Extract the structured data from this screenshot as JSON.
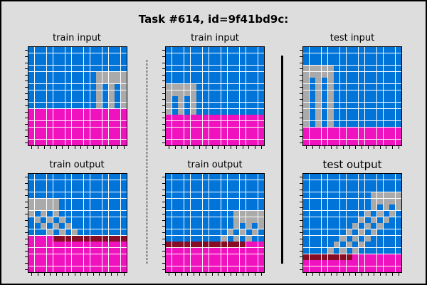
{
  "title": "Task #614, id=9f41bd9c:",
  "palette": {
    "0": "#0074d9",
    "5": "#aaaaaa",
    "6": "#f012be",
    "9": "#870c25"
  },
  "panels": [
    {
      "id": "p0",
      "label": "train input",
      "grid": [
        "0000000000000000",
        "0000000000000000",
        "0000000000000000",
        "0000000000000000",
        "0000000000055555",
        "0000000000055555",
        "0000000000050505",
        "0000000000050505",
        "0000000000050505",
        "0000000000050505",
        "6666666666666666",
        "6666666666666666",
        "6666666666666666",
        "6666666666666666",
        "6666666666666666",
        "6666666666666666"
      ]
    },
    {
      "id": "p1",
      "label": "train input",
      "grid": [
        "0000000000000000",
        "0000000000000000",
        "0000000000000000",
        "0000000000000000",
        "0000000000000000",
        "0000000000000000",
        "5555500000000000",
        "5555500000000000",
        "5050500000000000",
        "5050500000000000",
        "5050500000000000",
        "6666666666666666",
        "6666666666666666",
        "6666666666666666",
        "6666666666666666",
        "6666666666666666"
      ]
    },
    {
      "id": "p2",
      "label": "test input",
      "grid": [
        "0000000000000000",
        "0000000000000000",
        "0000000000000000",
        "5555500000000000",
        "5555500000000000",
        "5050500000000000",
        "5050500000000000",
        "5050500000000000",
        "5050500000000000",
        "5050500000000000",
        "5050500000000000",
        "5050500000000000",
        "5050500000000000",
        "6666666666666666",
        "6666666666666666",
        "6666666666666666"
      ]
    },
    {
      "id": "p3",
      "label": "train output",
      "grid": [
        "0000000000000000",
        "0000000000000000",
        "0000000000000000",
        "0000000000000000",
        "5555500000000000",
        "5555500000000000",
        "5050500000000000",
        "0505050000000000",
        "0050505000000000",
        "0005050500000000",
        "6666999999999999",
        "6666666666666666",
        "6666666666666666",
        "6666666666666666",
        "6666666666666666",
        "6666666666666666"
      ]
    },
    {
      "id": "p4",
      "label": "train output",
      "grid": [
        "0000000000000000",
        "0000000000000000",
        "0000000000000000",
        "0000000000000000",
        "0000000000000000",
        "0000000000000000",
        "0000000000055555",
        "0000000000055555",
        "0000000000050505",
        "0000000000505050",
        "0000000005050500",
        "9999999999999666",
        "6666666666666666",
        "6666666666666666",
        "6666666666666666",
        "6666666666666666"
      ]
    },
    {
      "id": "p5",
      "label": "test output",
      "grid": [
        "0000000000000000",
        "0000000000000000",
        "0000000000000000",
        "0000000000055555",
        "0000000000055555",
        "0000000000050505",
        "0000000000505050",
        "0000000005050500",
        "0000000050505000",
        "0000000505050000",
        "0000005050500000",
        "0000050505000000",
        "0000505050000000",
        "9999999966666666",
        "6666666666666666",
        "6666666666666666"
      ]
    }
  ]
}
